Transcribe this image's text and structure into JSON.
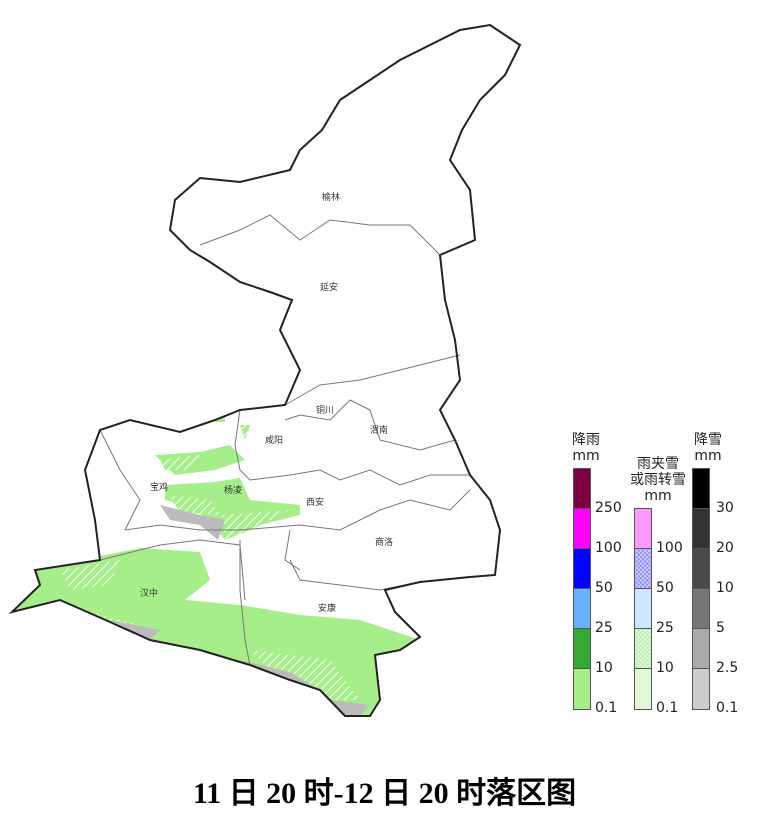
{
  "title": "11 日 20 时-12 日 20 时落区图",
  "cities": [
    "榆林",
    "延安",
    "铜川",
    "渭南",
    "咸阳",
    "宝鸡",
    "杨凌",
    "西安",
    "商洛",
    "汉中",
    "安康"
  ],
  "legend": {
    "rain": {
      "title": "降雨",
      "unit": "mm",
      "ticks": [
        "250",
        "100",
        "50",
        "25",
        "10",
        "0.1"
      ],
      "colors": [
        "#7a0040",
        "#ff00ff",
        "#0000ff",
        "#66b2ff",
        "#33aa33",
        "#a6ee8a"
      ]
    },
    "sleet": {
      "title_line1": "雨夹雪",
      "title_line2": "或雨转雪",
      "unit": "mm",
      "ticks": [
        "100",
        "50",
        "25",
        "10",
        "0.1"
      ],
      "colors": [
        "#ff99ff",
        "#8888ff",
        "#cce6ff",
        "#b6eeaa",
        "#e0f8d8"
      ]
    },
    "snow": {
      "title": "降雪",
      "unit": "mm",
      "ticks": [
        "30",
        "20",
        "10",
        "5",
        "2.5",
        "0.1"
      ],
      "colors": [
        "#000000",
        "#333333",
        "#4a4a4a",
        "#777777",
        "#aaaaaa",
        "#cccccc"
      ]
    }
  }
}
